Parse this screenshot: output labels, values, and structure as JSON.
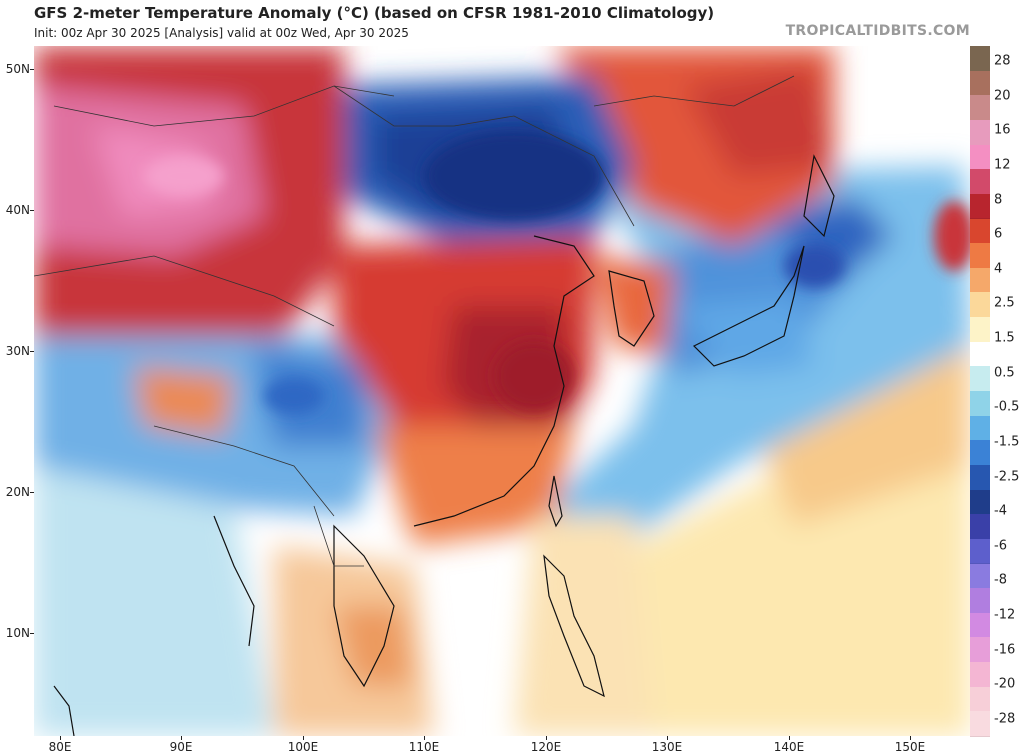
{
  "header": {
    "title": "GFS 2-meter Temperature Anomaly (°C) (based on CFSR 1981-2010 Climatology)",
    "subtitle": "Init: 00z Apr 30 2025   [Analysis]   valid at 00z Wed, Apr 30 2025",
    "brand": "TROPICALTIDBITS.COM"
  },
  "map": {
    "lat_labels": [
      "50N",
      "40N",
      "30N",
      "20N",
      "10N"
    ],
    "lon_labels": [
      "80E",
      "90E",
      "100E",
      "110E",
      "120E",
      "130E",
      "140E",
      "150E"
    ]
  },
  "colorbar": {
    "labels": [
      "28",
      "20",
      "16",
      "12",
      "8",
      "6",
      "4",
      "2.5",
      "1.5",
      "0.5",
      "-0.5",
      "-1.5",
      "-2.5",
      "-4",
      "-6",
      "-8",
      "-12",
      "-16",
      "-20",
      "-28"
    ],
    "colors": [
      "#7a6650",
      "#a8705e",
      "#c98a8a",
      "#e79bbd",
      "#f48fc2",
      "#d24a6a",
      "#b8252e",
      "#d9462e",
      "#ee7a44",
      "#f5a86a",
      "#fbd89a",
      "#fdf3c8",
      "#ffffff",
      "#c7ecef",
      "#8fd3e8",
      "#5fb0e6",
      "#3b82d6",
      "#2757b0",
      "#1f3d8a",
      "#3a40a8",
      "#5d5fcc",
      "#8a7be0",
      "#b07ee0",
      "#d28ae2",
      "#e79ed9",
      "#f4b6d3",
      "#f7cfd8",
      "#f9dbe0"
    ]
  }
}
